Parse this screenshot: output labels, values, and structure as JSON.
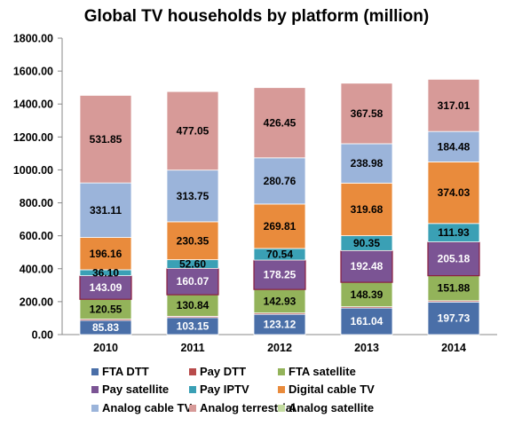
{
  "chart_data": {
    "type": "bar",
    "stacked": true,
    "title": "Global TV households by platform (million)",
    "xlabel": "",
    "ylabel": "",
    "categories": [
      "2010",
      "2011",
      "2012",
      "2013",
      "2014"
    ],
    "ylim": [
      0,
      1800
    ],
    "yticks": [
      "0.00",
      "200.00",
      "400.00",
      "600.00",
      "800.00",
      "1000.00",
      "1200.00",
      "1400.00",
      "1600.00",
      "1800.00"
    ],
    "grid": false,
    "legend_position": "bottom",
    "series": [
      {
        "name": "FTA DTT",
        "color": "#4a6fa8",
        "label_color": "#ffffff",
        "values": [
          85.83,
          103.15,
          123.12,
          161.04,
          197.73
        ],
        "labels": [
          "85.83",
          "103.15",
          "123.12",
          "161.04",
          "197.73"
        ]
      },
      {
        "name": "Pay DTT",
        "color": "#b84b4b",
        "label_color": "#000000",
        "values": [
          8,
          8,
          8,
          8,
          8
        ],
        "labels": []
      },
      {
        "name": "FTA satellite",
        "color": "#93b35a",
        "label_color": "#000000",
        "values": [
          120.55,
          130.84,
          142.93,
          148.39,
          151.88
        ],
        "labels": [
          "120.55",
          "130.84",
          "142.93",
          "148.39",
          "151.88"
        ]
      },
      {
        "name": "Pay satellite",
        "color": "#7b5494",
        "label_color": "#ffffff",
        "values": [
          143.09,
          160.07,
          178.25,
          192.48,
          205.18
        ],
        "labels": [
          "143.09",
          "160.07",
          "178.25",
          "192.48",
          "205.18"
        ]
      },
      {
        "name": "Pay IPTV",
        "color": "#3aa0b5",
        "label_color": "#000000",
        "values": [
          36.1,
          52.6,
          70.54,
          90.35,
          111.93
        ],
        "labels": [
          "36.10",
          "52.60",
          "70.54",
          "90.35",
          "111.93"
        ]
      },
      {
        "name": "Digital cable TV",
        "color": "#e98b3c",
        "label_color": "#000000",
        "values": [
          196.16,
          230.35,
          269.81,
          319.68,
          374.03
        ],
        "labels": [
          "196.16",
          "230.35",
          "269.81",
          "319.68",
          "374.03"
        ]
      },
      {
        "name": "Analog cable TV",
        "color": "#9bb4da",
        "label_color": "#000000",
        "values": [
          331.11,
          313.75,
          280.76,
          238.98,
          184.48
        ],
        "labels": [
          "331.11",
          "313.75",
          "280.76",
          "238.98",
          "184.48"
        ]
      },
      {
        "name": "Analog terrestrial",
        "color": "#d79a98",
        "label_color": "#000000",
        "values": [
          531.85,
          477.05,
          426.45,
          367.58,
          317.01
        ],
        "labels": [
          "531.85",
          "477.05",
          "426.45",
          "367.58",
          "317.01"
        ]
      },
      {
        "name": "Analog satellite",
        "color": "#c3dba0",
        "label_color": "#000000",
        "values": [
          0,
          0,
          0,
          0,
          0
        ],
        "labels": []
      }
    ]
  }
}
